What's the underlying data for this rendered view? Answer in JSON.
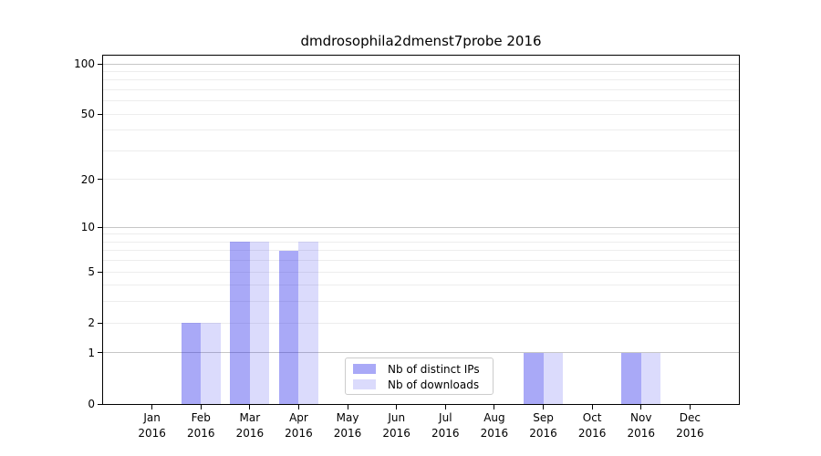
{
  "figure": {
    "background": "#ffffff"
  },
  "chart_data": {
    "type": "bar",
    "title": "dmdrosophila2dmenst7probe 2016",
    "categories": [
      "Jan 2016",
      "Feb 2016",
      "Mar 2016",
      "Apr 2016",
      "May 2016",
      "Jun 2016",
      "Jul 2016",
      "Aug 2016",
      "Sep 2016",
      "Oct 2016",
      "Nov 2016",
      "Dec 2016"
    ],
    "series": [
      {
        "name": "Nb of distinct IPs",
        "color": "#a8a8f5",
        "fill": "rgba(30,30,235,0.38)",
        "values": [
          0,
          2,
          8,
          7,
          0,
          0,
          0,
          0,
          1,
          0,
          1,
          0
        ]
      },
      {
        "name": "Nb of downloads",
        "color": "#dbdbfc",
        "fill": "rgba(30,30,235,0.16)",
        "values": [
          0,
          2,
          8,
          8,
          0,
          0,
          0,
          0,
          1,
          0,
          1,
          0
        ]
      }
    ],
    "xlabel": "",
    "ylabel": "",
    "yscale": "log1p",
    "ylim": [
      0,
      100
    ],
    "yticks": [
      0,
      1,
      2,
      5,
      10,
      20,
      50,
      100
    ],
    "major_gridlines": [
      1,
      10,
      100
    ],
    "minor_gridlines": [
      2,
      3,
      4,
      5,
      6,
      7,
      8,
      9,
      20,
      30,
      40,
      50,
      60,
      70,
      80,
      90
    ],
    "grid": true,
    "legend": {
      "position": "lower-center",
      "entries": [
        "Nb of distinct IPs",
        "Nb of downloads"
      ]
    },
    "axis_color": "#000000",
    "major_grid_color": "#c6c6c6",
    "minor_grid_color": "#ededed"
  }
}
